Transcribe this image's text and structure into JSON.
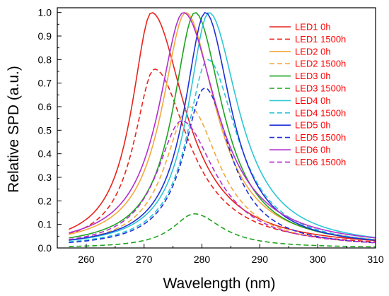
{
  "chart_data": {
    "type": "line",
    "title": "",
    "xlabel": "Wavelength (nm)",
    "ylabel": "Relative SPD (a.u.)",
    "xlim": [
      255,
      310
    ],
    "ylim": [
      0.0,
      1.02
    ],
    "xticks": [
      260,
      270,
      280,
      290,
      300,
      310
    ],
    "yticks": [
      0.0,
      0.1,
      0.2,
      0.3,
      0.4,
      0.5,
      0.6,
      0.7,
      0.8,
      0.9,
      1.0
    ],
    "xtick_labels": [
      "260",
      "270",
      "280",
      "290",
      "300",
      "310"
    ],
    "ytick_labels": [
      "0.0",
      "0.1",
      "0.2",
      "0.3",
      "0.4",
      "0.5",
      "0.6",
      "0.7",
      "0.8",
      "0.9",
      "1.0"
    ],
    "grid": false,
    "legend_position": "top-right",
    "x_sampling": {
      "start": 257,
      "end": 310,
      "step": 0.5
    },
    "series": [
      {
        "name": "LED1 0h",
        "color": "#e8241c",
        "dash": "solid",
        "peak": 271.3,
        "amplitude": 1.0,
        "sigma_left": 4.2,
        "sigma_right": 7.0
      },
      {
        "name": "LED1 1500h",
        "color": "#e8241c",
        "dash": "dashed",
        "peak": 271.8,
        "amplitude": 0.76,
        "sigma_left": 4.3,
        "sigma_right": 7.2
      },
      {
        "name": "LED2 0h",
        "color": "#f2a93b",
        "dash": "solid",
        "peak": 277.2,
        "amplitude": 1.0,
        "sigma_left": 5.0,
        "sigma_right": 6.3
      },
      {
        "name": "LED2 1500h",
        "color": "#f2a93b",
        "dash": "dashed",
        "peak": 277.8,
        "amplitude": 0.6,
        "sigma_left": 5.0,
        "sigma_right": 6.3
      },
      {
        "name": "LED3 0h",
        "color": "#1fa31f",
        "dash": "solid",
        "peak": 278.8,
        "amplitude": 1.0,
        "sigma_left": 4.6,
        "sigma_right": 5.8
      },
      {
        "name": "LED3 1500h",
        "color": "#1fa31f",
        "dash": "dashed",
        "peak": 278.7,
        "amplitude": 0.145,
        "sigma_left": 4.6,
        "sigma_right": 5.8
      },
      {
        "name": "LED4 0h",
        "color": "#2cc6d6",
        "dash": "solid",
        "peak": 281.2,
        "amplitude": 1.0,
        "sigma_left": 4.4,
        "sigma_right": 6.2
      },
      {
        "name": "LED4 1500h",
        "color": "#2cc6d6",
        "dash": "dashed",
        "peak": 281.0,
        "amplitude": 0.8,
        "sigma_left": 4.4,
        "sigma_right": 6.2
      },
      {
        "name": "LED5 0h",
        "color": "#1f2fd6",
        "dash": "solid",
        "peak": 280.6,
        "amplitude": 1.0,
        "sigma_left": 4.4,
        "sigma_right": 5.4
      },
      {
        "name": "LED5 1500h",
        "color": "#1f2fd6",
        "dash": "dashed",
        "peak": 280.5,
        "amplitude": 0.68,
        "sigma_left": 4.4,
        "sigma_right": 5.4
      },
      {
        "name": "LED6 0h",
        "color": "#b22fd0",
        "dash": "solid",
        "peak": 276.8,
        "amplitude": 1.0,
        "sigma_left": 5.2,
        "sigma_right": 7.0
      },
      {
        "name": "LED6 1500h",
        "color": "#b22fd0",
        "dash": "dashed",
        "peak": 276.5,
        "amplitude": 0.54,
        "sigma_left": 5.2,
        "sigma_right": 7.0
      }
    ]
  }
}
